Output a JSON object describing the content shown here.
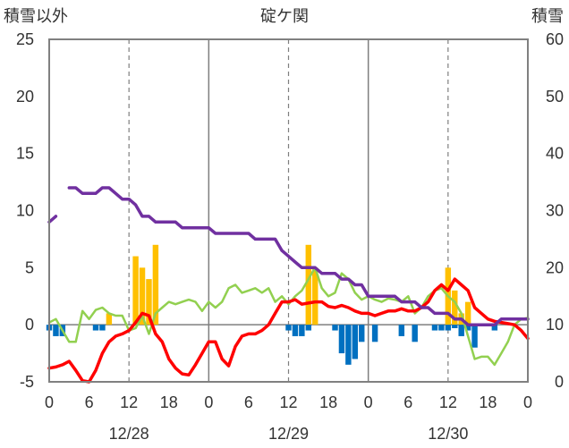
{
  "chart_data": {
    "type": "bar+line",
    "title": "碇ケ関",
    "left_axis_label": "積雪以外",
    "right_axis_label": "積雪",
    "left_ylim": [
      -5,
      25
    ],
    "left_ticks": [
      "-5",
      "0",
      "5",
      "10",
      "15",
      "20",
      "25"
    ],
    "right_ylim": [
      0,
      60
    ],
    "right_ticks": [
      "0",
      "10",
      "20",
      "30",
      "40",
      "50",
      "60"
    ],
    "x_range_hours": [
      0,
      72
    ],
    "x_ticks": [
      "0",
      "6",
      "12",
      "18",
      "0",
      "6",
      "12",
      "18",
      "0",
      "6",
      "12",
      "18",
      "0"
    ],
    "date_labels": [
      {
        "label": "12/28",
        "hour": 12
      },
      {
        "label": "12/29",
        "hour": 36
      },
      {
        "label": "12/30",
        "hour": 60
      }
    ],
    "colors": {
      "precip_bar": "#FFC000",
      "pressure_bar": "#0070C0",
      "temp_line": "#FF0000",
      "green_line": "#92D050",
      "snow_line": "#7030A0",
      "grid_solid": "#7f7f7f",
      "grid_dash": "#7f7f7f",
      "frame": "#808080"
    },
    "series": [
      {
        "name": "yellow_bars",
        "kind": "bar",
        "axis": "left",
        "x": [
          9,
          13,
          14,
          15,
          16,
          39,
          40,
          60,
          61,
          62,
          63
        ],
        "values": [
          1,
          6,
          5,
          4,
          7,
          7,
          5,
          5,
          3,
          1,
          2
        ]
      },
      {
        "name": "blue_bars",
        "kind": "bar",
        "axis": "left",
        "x": [
          0,
          1,
          2,
          7,
          8,
          36,
          37,
          38,
          39,
          43,
          44,
          45,
          46,
          47,
          49,
          53,
          55,
          58,
          59,
          60,
          61,
          62,
          63,
          64,
          67
        ],
        "values": [
          -0.5,
          -1,
          -1,
          -0.5,
          -0.5,
          -0.5,
          -1,
          -1,
          -0.5,
          -0.5,
          -2.5,
          -3.5,
          -3,
          -1.5,
          -1.5,
          -1,
          -1.5,
          -0.5,
          -0.5,
          -0.5,
          -0.3,
          -1,
          -0.5,
          -2,
          -0.5
        ]
      },
      {
        "name": "red_line",
        "kind": "line",
        "axis": "left",
        "x": [
          0,
          1,
          2,
          3,
          4,
          5,
          6,
          7,
          8,
          9,
          10,
          11,
          12,
          13,
          14,
          15,
          16,
          17,
          18,
          19,
          20,
          21,
          22,
          23,
          24,
          25,
          26,
          27,
          28,
          29,
          30,
          31,
          32,
          33,
          34,
          35,
          36,
          37,
          38,
          39,
          40,
          41,
          42,
          43,
          44,
          45,
          46,
          47,
          48,
          49,
          50,
          51,
          52,
          53,
          54,
          55,
          56,
          57,
          58,
          59,
          60,
          61,
          62,
          63,
          64,
          65,
          66,
          67,
          68,
          69,
          70,
          71,
          72
        ],
        "values": [
          -3.8,
          -3.7,
          -3.5,
          -3.2,
          -4,
          -4.9,
          -5,
          -4,
          -2.5,
          -1.5,
          -1.0,
          -0.8,
          -0.5,
          0.2,
          1.0,
          0.8,
          -0.8,
          -1.5,
          -3.0,
          -3.8,
          -4.3,
          -4.4,
          -3.5,
          -2.5,
          -1.5,
          -1.5,
          -3.0,
          -3.6,
          -1.9,
          -1.0,
          -0.8,
          -0.8,
          -0.5,
          0,
          1.0,
          2.0,
          2.0,
          2.2,
          1.8,
          1.9,
          2.0,
          2.0,
          1.6,
          1.5,
          1.7,
          1.5,
          1.2,
          1.0,
          1.0,
          0.8,
          1.0,
          1.2,
          1.2,
          1.4,
          1.2,
          1.2,
          1.5,
          2.0,
          3.0,
          3.5,
          3.0,
          4.0,
          3.5,
          3.0,
          1.5,
          1.0,
          0.5,
          0.3,
          0.2,
          0.1,
          0,
          -0.5,
          -1.2
        ]
      },
      {
        "name": "green_line",
        "kind": "line",
        "axis": "left",
        "x": [
          0,
          1,
          2,
          3,
          4,
          5,
          6,
          7,
          8,
          9,
          10,
          11,
          12,
          13,
          14,
          15,
          16,
          17,
          18,
          19,
          20,
          21,
          22,
          23,
          24,
          25,
          26,
          27,
          28,
          29,
          30,
          31,
          32,
          33,
          34,
          35,
          36,
          37,
          38,
          39,
          40,
          41,
          42,
          43,
          44,
          45,
          46,
          47,
          48,
          49,
          50,
          51,
          52,
          53,
          54,
          55,
          56,
          57,
          58,
          59,
          60,
          61,
          62,
          63,
          64,
          65,
          66,
          67,
          68,
          69,
          70,
          71,
          72
        ],
        "values": [
          0.2,
          0.5,
          -0.5,
          -1.5,
          -1.5,
          1.2,
          0.5,
          1.3,
          1.5,
          1.0,
          0.8,
          0.8,
          -0.5,
          -0.3,
          0.8,
          -0.8,
          1.0,
          1.5,
          2.0,
          1.8,
          2.0,
          2.2,
          2.0,
          1.2,
          2.0,
          1.5,
          2.0,
          3.2,
          3.5,
          2.8,
          3.0,
          3.2,
          2.8,
          3.2,
          2.0,
          2.5,
          1.8,
          2.5,
          3.0,
          4.0,
          5.0,
          3.2,
          2.5,
          2.8,
          4.5,
          4.0,
          2.8,
          2.2,
          2.5,
          2.2,
          2.0,
          2.3,
          2.2,
          2.0,
          2.5,
          1.0,
          1.5,
          2.5,
          3.0,
          3.2,
          2.5,
          2.0,
          1.0,
          -1.0,
          -3.0,
          -2.8,
          -2.8,
          -3.5,
          -2.5,
          -1.5,
          0,
          0.5,
          0.6
        ]
      },
      {
        "name": "purple_snow_line",
        "kind": "line",
        "axis": "right",
        "x": [
          0,
          1,
          2,
          3,
          4,
          5,
          6,
          7,
          8,
          9,
          10,
          11,
          12,
          13,
          14,
          15,
          16,
          17,
          18,
          19,
          20,
          21,
          22,
          23,
          24,
          25,
          26,
          27,
          28,
          29,
          30,
          31,
          32,
          33,
          34,
          35,
          36,
          37,
          38,
          39,
          40,
          41,
          42,
          43,
          44,
          45,
          46,
          47,
          48,
          49,
          50,
          51,
          52,
          53,
          54,
          55,
          56,
          57,
          58,
          59,
          60,
          61,
          62,
          63,
          64,
          65,
          66,
          67,
          68,
          69,
          70,
          71,
          72
        ],
        "values": [
          28,
          29,
          null,
          34,
          34,
          33,
          33,
          33,
          34,
          34,
          33,
          32,
          32,
          31,
          29,
          29,
          28,
          28,
          28,
          28,
          27,
          27,
          27,
          27,
          27,
          26,
          26,
          26,
          26,
          26,
          26,
          25,
          25,
          25,
          25,
          23,
          22,
          21,
          20,
          20,
          20,
          19,
          19,
          19,
          18,
          18,
          17,
          17,
          15,
          15,
          15,
          15,
          15,
          14,
          14,
          14,
          13,
          13,
          12,
          12,
          12,
          11,
          11,
          10,
          10,
          10,
          10,
          10,
          11,
          11,
          11,
          11,
          11
        ]
      }
    ]
  }
}
